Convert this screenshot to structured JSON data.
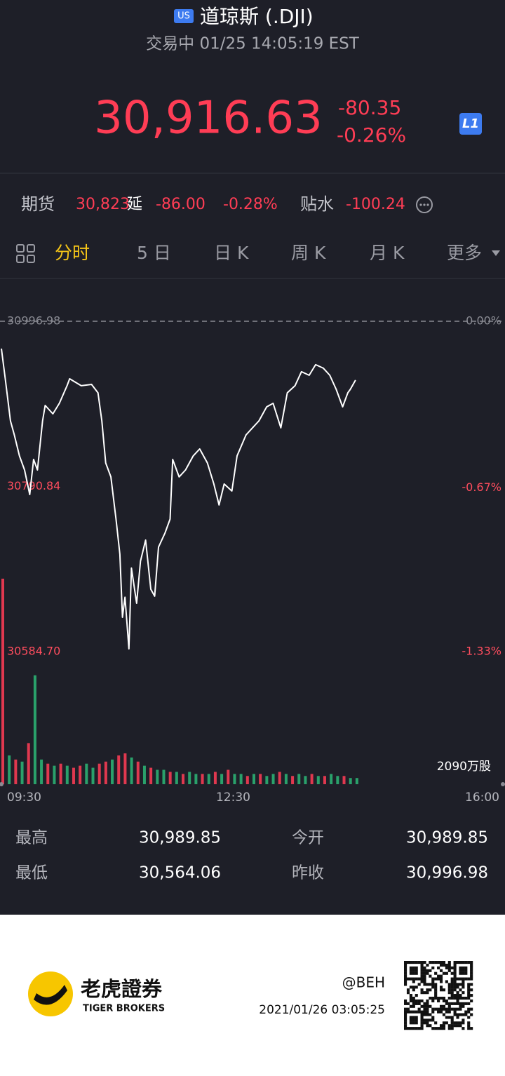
{
  "header": {
    "badge": "US",
    "title": "道琼斯 (.DJI)",
    "status": "交易中 01/25 14:05:19 EST",
    "price": "30,916.63",
    "change": "-80.35",
    "change_pct": "-0.26%",
    "level_badge": "L1"
  },
  "futures": {
    "label": "期货",
    "price": "30,823",
    "delay": "延",
    "change": "-86.00",
    "change_pct": "-0.28%",
    "basis_label": "贴水",
    "basis": "-100.24"
  },
  "tabs": [
    "分时",
    "5 日",
    "日 K",
    "周 K",
    "月 K",
    "更多"
  ],
  "chart_data": {
    "type": "line",
    "color": "#ffffff",
    "x": [
      0,
      3,
      7,
      10,
      14,
      18,
      22,
      25,
      28,
      32,
      34,
      40,
      45,
      51,
      53,
      62,
      70,
      75,
      78,
      81,
      85,
      89,
      92,
      94,
      96,
      99,
      101,
      105,
      108,
      112,
      116,
      119,
      122,
      127,
      131,
      133,
      138,
      143,
      149,
      154,
      160,
      165,
      169,
      173,
      179,
      183,
      190,
      195,
      200,
      206,
      211,
      217,
      222,
      228,
      233,
      239,
      244,
      250,
      255,
      260,
      265,
      269,
      271,
      275
    ],
    "values": [
      30962.8,
      30925.2,
      30872.7,
      30855.2,
      30829.0,
      30811.4,
      30780.8,
      30824.5,
      30811.4,
      30872.7,
      30891.9,
      30881.4,
      30894.6,
      30916.5,
      30925.2,
      30916.5,
      30918.2,
      30907.7,
      30872.7,
      30820.2,
      30802.7,
      30750.1,
      30706.4,
      30627.6,
      30652.6,
      30588.2,
      30688.9,
      30645.1,
      30697.6,
      30723.9,
      30662.6,
      30653.9,
      30715.1,
      30732.6,
      30750.1,
      30824.5,
      30802.7,
      30811.4,
      30829.0,
      30837.7,
      30820.2,
      30793.9,
      30767.7,
      30793.9,
      30785.1,
      30829.0,
      30855.2,
      30864.0,
      30872.7,
      30890.2,
      30894.6,
      30864.0,
      30907.7,
      30916.5,
      30934.0,
      30929.6,
      30942.8,
      30938.4,
      30929.6,
      30912.1,
      30890.2,
      30907.7,
      30912.1,
      30923.5
    ],
    "xlim": [
      0,
      390
    ],
    "xticks": [
      {
        "value": 0,
        "label": "09:30"
      },
      {
        "value": 180,
        "label": "12:30"
      },
      {
        "value": 390,
        "label": "16:00"
      }
    ],
    "ylim": [
      30566.3,
      31039.0
    ],
    "yticks": [
      30996.98,
      30790.84,
      {
        "value": 30584.7,
        "label": "30584.70"
      }
    ],
    "y2lim": [
      -1.389,
      0.136
    ],
    "y2ticks": [
      {
        "value": 0,
        "label": "0.00%"
      },
      {
        "value": -0.67,
        "label": "-0.67%"
      },
      {
        "value": -1.33,
        "label": "-1.33%"
      }
    ],
    "volume": {
      "label": "2090万股",
      "ylim": [
        0,
        100
      ],
      "x": [
        0,
        5,
        10,
        15,
        20,
        25,
        30,
        35,
        40,
        45,
        50,
        55,
        60,
        65,
        70,
        75,
        80,
        85,
        90,
        95,
        100,
        105,
        110,
        115,
        120,
        125,
        130,
        135,
        140,
        145,
        150,
        155,
        160,
        165,
        170,
        175,
        180,
        185,
        190,
        195,
        200,
        205,
        210,
        215,
        220,
        225,
        230,
        235,
        240,
        245,
        250,
        255,
        260,
        265,
        270,
        275
      ],
      "values": [
        100,
        14,
        12,
        11,
        20,
        53,
        12,
        10,
        9,
        10,
        9,
        8,
        9,
        10,
        8,
        10,
        11,
        12,
        14,
        15,
        13,
        11,
        9,
        8,
        7,
        7,
        6,
        6,
        5,
        6,
        5,
        5,
        5,
        6,
        5,
        7,
        5,
        5,
        4,
        5,
        5,
        4,
        5,
        6,
        5,
        4,
        5,
        4,
        5,
        4,
        4,
        5,
        4,
        4,
        3,
        3
      ],
      "colors": [
        "#e0384f",
        "#2aa16b",
        "#e0384f",
        "#2aa16b",
        "#e0384f",
        "#2aa16b",
        "#2aa16b",
        "#e0384f",
        "#2aa16b",
        "#e0384f",
        "#2aa16b",
        "#e0384f",
        "#e0384f",
        "#2aa16b",
        "#2aa16b",
        "#e0384f",
        "#e0384f",
        "#2aa16b",
        "#e0384f",
        "#e0384f",
        "#2aa16b",
        "#e0384f",
        "#2aa16b",
        "#e0384f",
        "#2aa16b",
        "#2aa16b",
        "#e0384f",
        "#2aa16b",
        "#e0384f",
        "#2aa16b",
        "#2aa16b",
        "#e0384f",
        "#2aa16b",
        "#e0384f",
        "#2aa16b",
        "#e0384f",
        "#2aa16b",
        "#2aa16b",
        "#e0384f",
        "#2aa16b",
        "#e0384f",
        "#2aa16b",
        "#2aa16b",
        "#e0384f",
        "#2aa16b",
        "#e0384f",
        "#2aa16b",
        "#2aa16b",
        "#e0384f",
        "#2aa16b",
        "#e0384f",
        "#2aa16b",
        "#2aa16b",
        "#e0384f",
        "#2aa16b",
        "#2aa16b"
      ]
    }
  },
  "stats": [
    {
      "label": "最高",
      "value": "30,989.85"
    },
    {
      "label": "今开",
      "value": "30,989.85"
    },
    {
      "label": "最低",
      "value": "30,564.06"
    },
    {
      "label": "昨收",
      "value": "30,996.98"
    }
  ],
  "footer": {
    "brand": "老虎證券",
    "brand_en": "TIGER BROKERS",
    "user": "@BEH",
    "timestamp": "2021/01/26 03:05:25"
  }
}
